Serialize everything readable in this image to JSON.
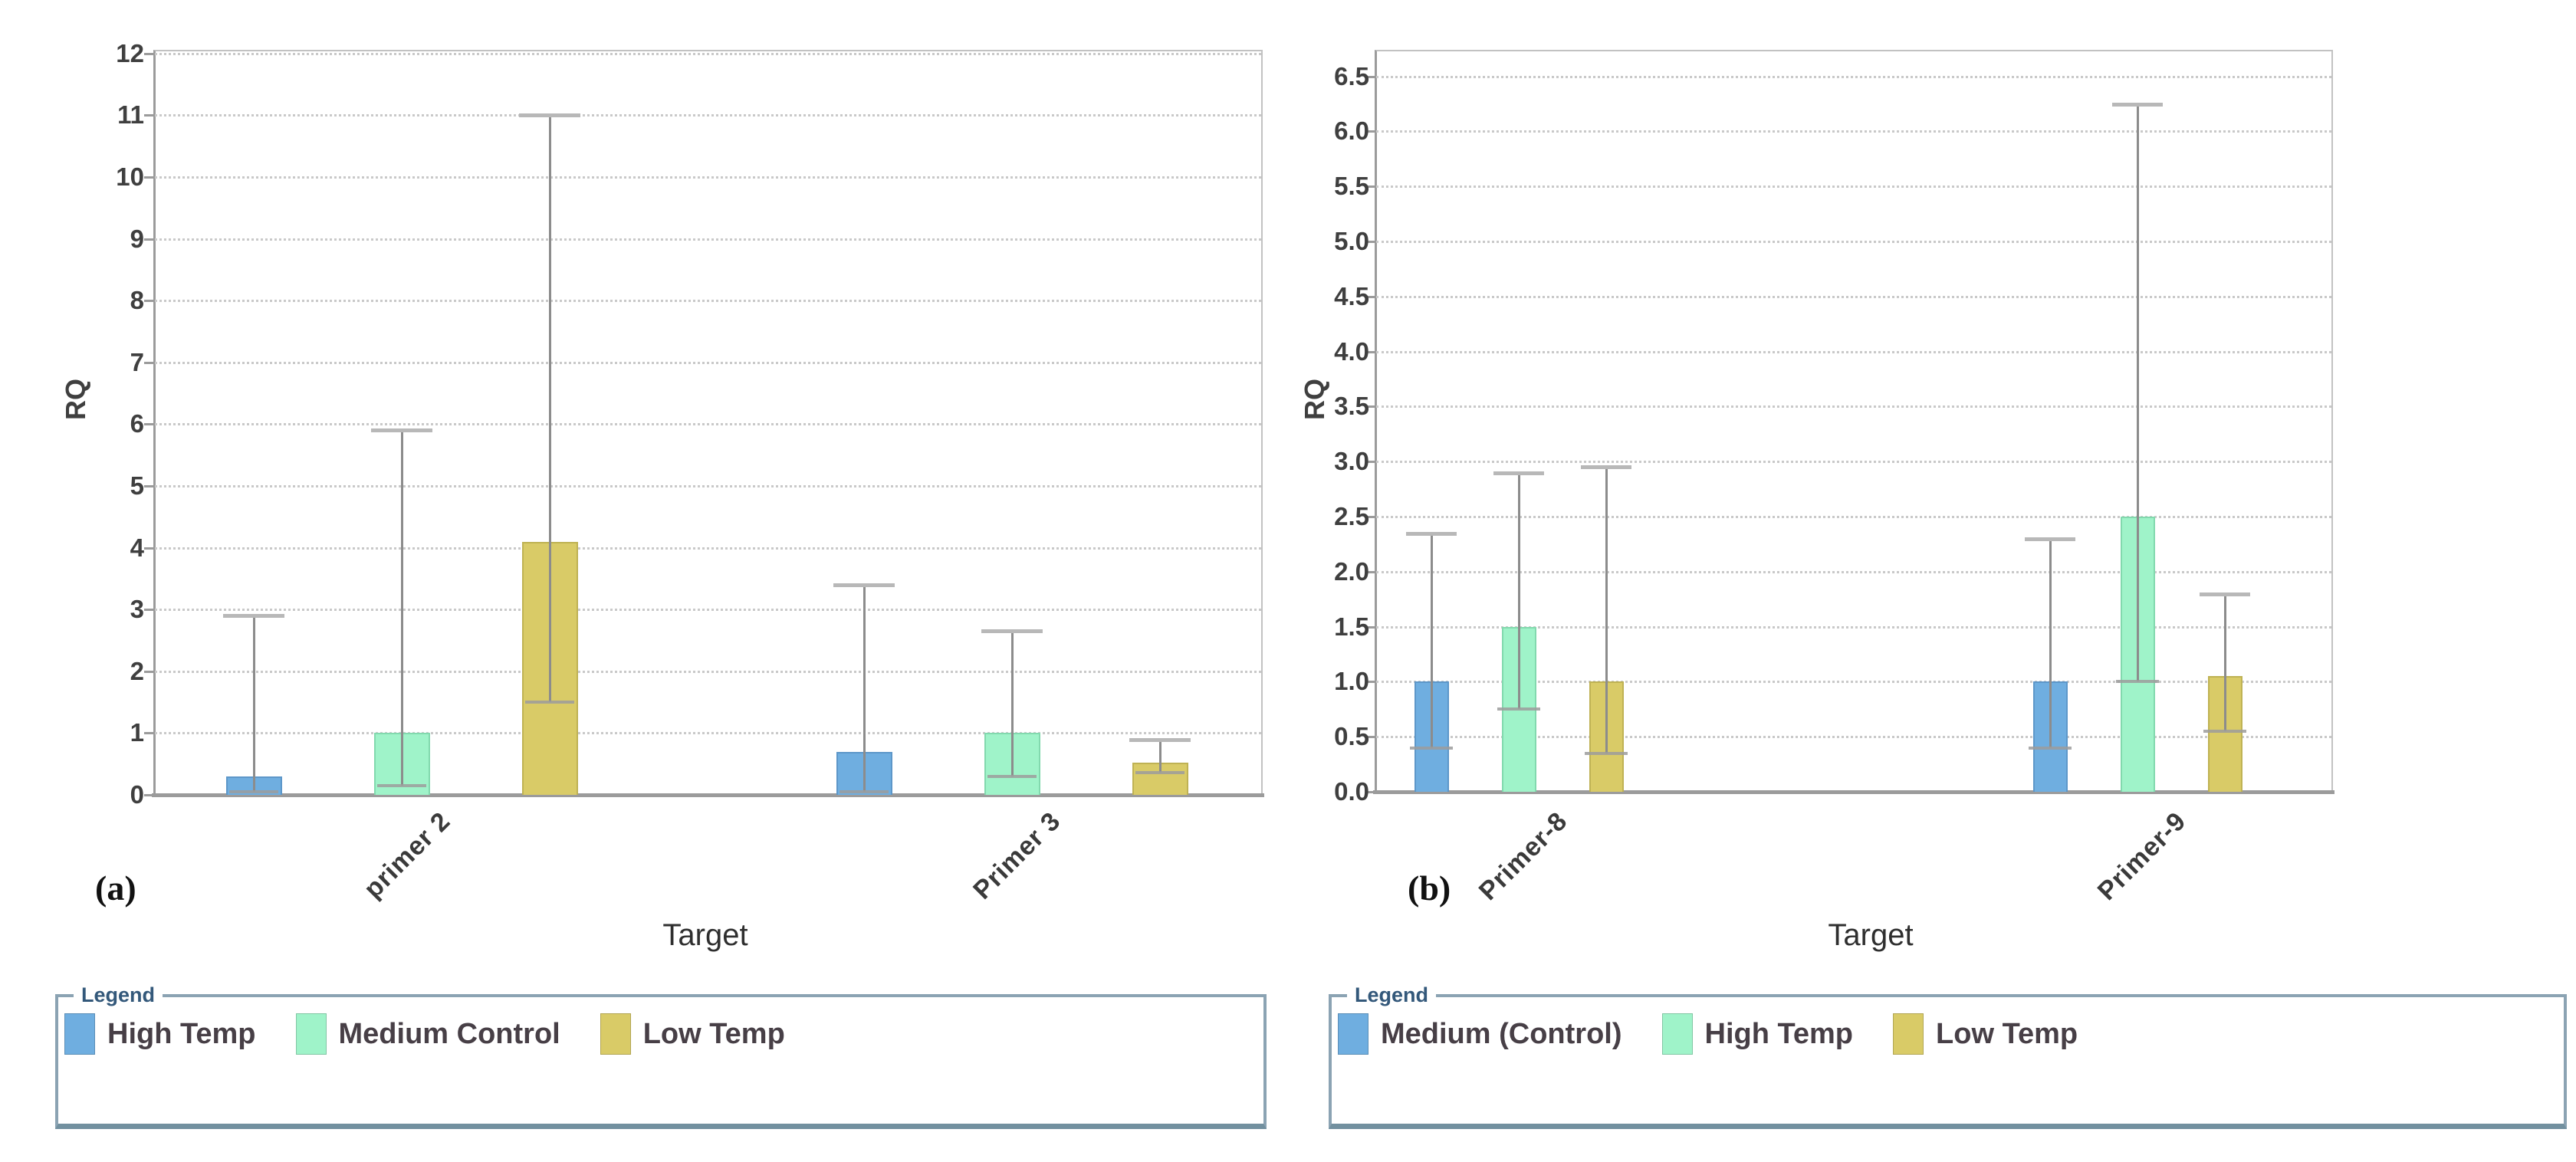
{
  "chart_data": [
    {
      "type": "bar",
      "panel_label": "(a)",
      "title": "",
      "xlabel": "Target",
      "ylabel": "RQ",
      "ylim": [
        0,
        12.05
      ],
      "y_ticks": [
        0,
        1,
        2,
        3,
        4,
        5,
        6,
        7,
        8,
        9,
        10,
        11,
        12
      ],
      "y_tick_format": "integer",
      "grid": "horizontal-dotted",
      "legend_title": "Legend",
      "legend_position": "below-left",
      "categories": [
        "primer 2",
        "Primer 3"
      ],
      "series": [
        {
          "name": "High Temp",
          "color": "#6FAEE0",
          "border_color": "#5d97c9",
          "values": [
            0.3,
            0.7
          ],
          "err_low": [
            0.05,
            0.05
          ],
          "err_high": [
            2.9,
            3.4
          ]
        },
        {
          "name": "Medium Control",
          "color": "#9FF3C9",
          "border_color": "#82d9ae",
          "values": [
            1.0,
            1.0
          ],
          "err_low": [
            0.15,
            0.3
          ],
          "err_high": [
            5.9,
            2.65
          ]
        },
        {
          "name": "Low Temp",
          "color": "#D9CB67",
          "border_color": "#bfb254",
          "values": [
            4.1,
            0.52
          ],
          "err_low": [
            1.5,
            0.36
          ],
          "err_high": [
            11.0,
            0.89
          ]
        }
      ]
    },
    {
      "type": "bar",
      "panel_label": "(b)",
      "title": "",
      "xlabel": "Target",
      "ylabel": "RQ",
      "ylim": [
        0,
        6.75
      ],
      "y_ticks": [
        0.0,
        0.5,
        1.0,
        1.5,
        2.0,
        2.5,
        3.0,
        3.5,
        4.0,
        4.5,
        5.0,
        5.5,
        6.0,
        6.5
      ],
      "y_tick_format": "one-decimal",
      "grid": "horizontal-dotted",
      "legend_title": "Legend",
      "legend_position": "below-left",
      "categories": [
        "Primer-8",
        "Primer-9"
      ],
      "series": [
        {
          "name": "Medium (Control)",
          "color": "#6FAEE0",
          "border_color": "#5d97c9",
          "values": [
            1.0,
            1.0
          ],
          "err_low": [
            0.4,
            0.4
          ],
          "err_high": [
            2.35,
            2.3
          ]
        },
        {
          "name": "High Temp",
          "color": "#9FF3C9",
          "border_color": "#82d9ae",
          "values": [
            1.5,
            2.5
          ],
          "err_low": [
            0.75,
            1.0
          ],
          "err_high": [
            2.9,
            6.25
          ]
        },
        {
          "name": "Low Temp",
          "color": "#D9CB67",
          "border_color": "#bfb254",
          "values": [
            1.0,
            1.05
          ],
          "err_low": [
            0.35,
            0.55
          ],
          "err_high": [
            2.95,
            1.8
          ]
        }
      ]
    }
  ],
  "styles": {
    "grid_color": "#c9c9c9",
    "axis_color": "#9b9b9b",
    "plot_border_color": "#c2c2c2",
    "error_line_color": "#8c8c8c",
    "error_cap_top_color": "#b8b8b8",
    "error_cap_bottom_color": "#9c9c9c",
    "tick_text_color": "#3f3f3f",
    "series_colors": [
      "#6FAEE0",
      "#9FF3C9",
      "#D9CB67"
    ],
    "legend_border_color": "#8BA3B3",
    "legend_title_color": "#33587A",
    "legend_text_color": "#473f46"
  }
}
